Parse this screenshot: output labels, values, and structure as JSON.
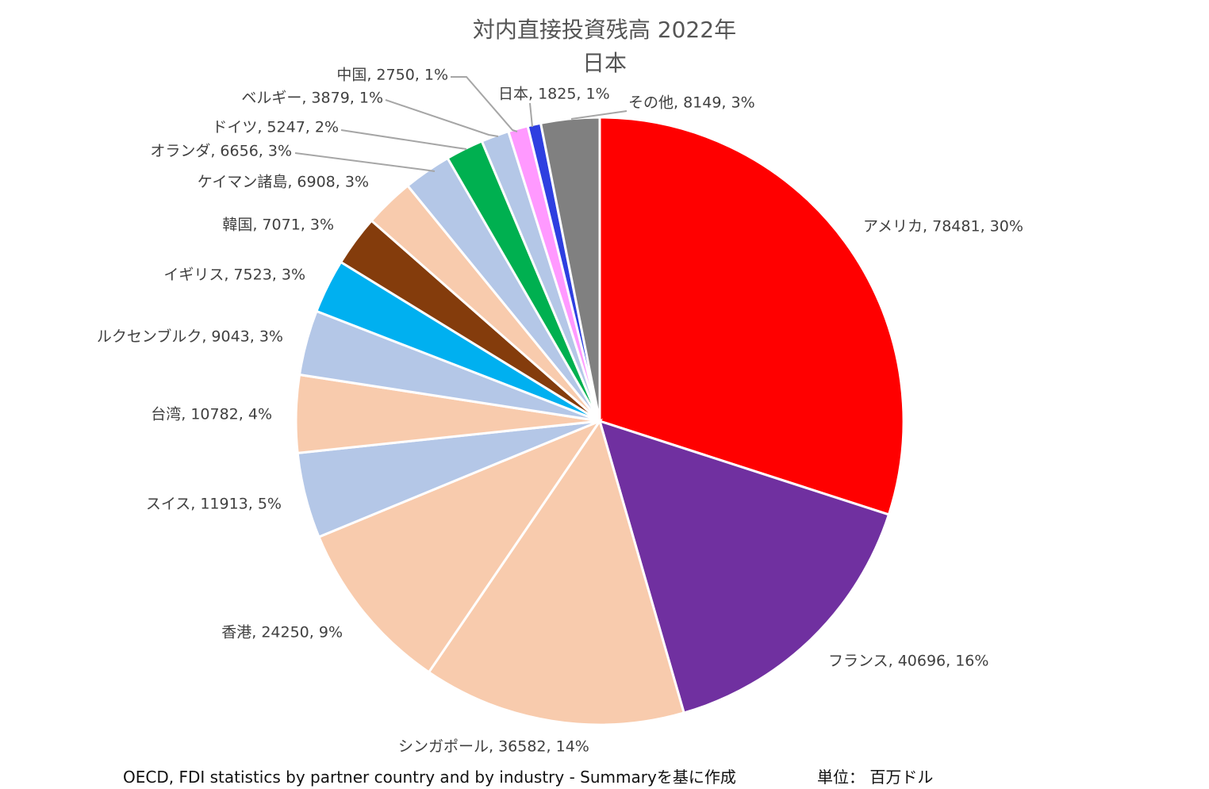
{
  "chart_data": {
    "type": "pie",
    "title": "対内直接投資残高 2022年",
    "subtitle": "日本",
    "slices": [
      {
        "label": "アメリカ",
        "value": 78481,
        "percent": "30%",
        "color": "#ff0000"
      },
      {
        "label": "フランス",
        "value": 40696,
        "percent": "16%",
        "color": "#7030a0"
      },
      {
        "label": "シンガポール",
        "value": 36582,
        "percent": "14%",
        "color": "#f8cbad"
      },
      {
        "label": "香港",
        "value": 24250,
        "percent": "9%",
        "color": "#f8cbad"
      },
      {
        "label": "スイス",
        "value": 11913,
        "percent": "5%",
        "color": "#b4c7e7"
      },
      {
        "label": "台湾",
        "value": 10782,
        "percent": "4%",
        "color": "#f8cbad"
      },
      {
        "label": "ルクセンブルク",
        "value": 9043,
        "percent": "3%",
        "color": "#b4c7e7"
      },
      {
        "label": "イギリス",
        "value": 7523,
        "percent": "3%",
        "color": "#00b0f0"
      },
      {
        "label": "韓国",
        "value": 7071,
        "percent": "3%",
        "color": "#843c0c"
      },
      {
        "label": "ケイマン諸島",
        "value": 6908,
        "percent": "3%",
        "color": "#f8cbad"
      },
      {
        "label": "オランダ",
        "value": 6656,
        "percent": "3%",
        "color": "#b4c7e7"
      },
      {
        "label": "ドイツ",
        "value": 5247,
        "percent": "2%",
        "color": "#00b050"
      },
      {
        "label": "ベルギー",
        "value": 3879,
        "percent": "1%",
        "color": "#b4c7e7"
      },
      {
        "label": "中国",
        "value": 2750,
        "percent": "1%",
        "color": "#ff99ff"
      },
      {
        "label": "日本",
        "value": 1825,
        "percent": "1%",
        "color": "#2e3fe0"
      },
      {
        "label": "その他",
        "value": 8149,
        "percent": "3%",
        "color": "#808080"
      }
    ],
    "grid": false,
    "legend": "none"
  },
  "footer": {
    "source": "OECD, FDI statistics by partner country and by industry - Summaryを基に作成",
    "unit": "単位： 百万ドル"
  }
}
